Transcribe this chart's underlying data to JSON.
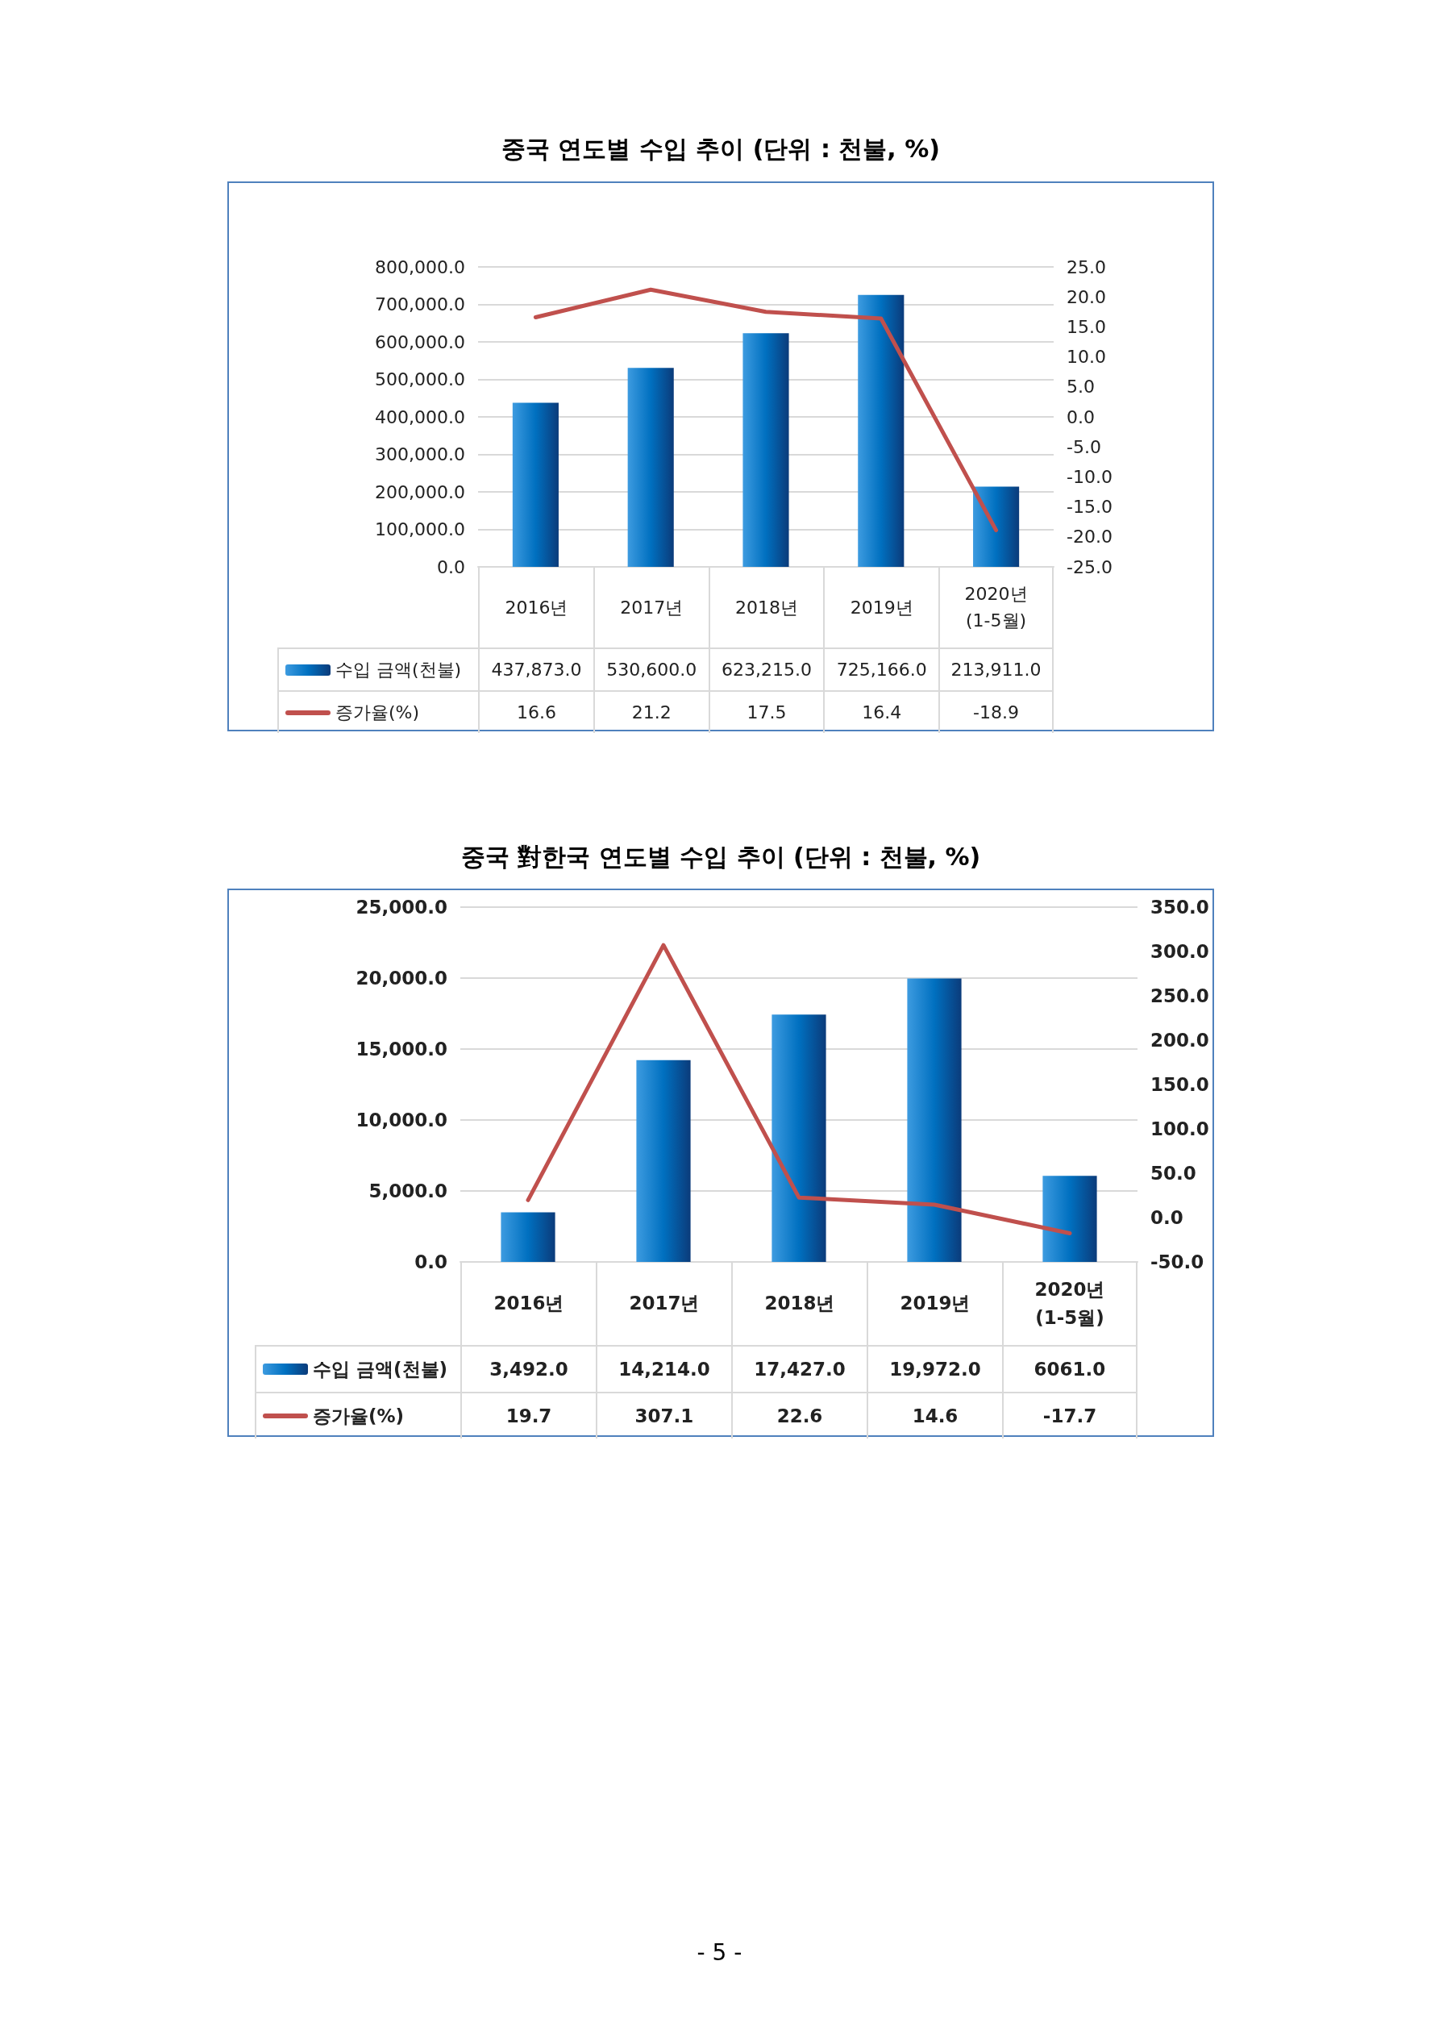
{
  "chart_data": [
    {
      "type": "bar",
      "title": "중국 연도별 수입 추이 (단위 : 천불, %)",
      "categories": [
        "2016년",
        "2017년",
        "2018년",
        "2019년",
        "2020년(1-5월)"
      ],
      "series": [
        {
          "name": "수입 금액(천불)",
          "color": "#0070c0",
          "values": [
            437873,
            530600,
            623215,
            725166,
            213911
          ],
          "value_labels": [
            "437,873.0",
            "530,600.0",
            "623,215.0",
            "725,166.0",
            "213,911.0"
          ]
        },
        {
          "name": "증가율(%)",
          "type": "line",
          "axis": "y2",
          "color": "#c0504d",
          "values": [
            16.6,
            21.2,
            17.5,
            16.4,
            -18.9
          ],
          "value_labels": [
            "16.6",
            "21.2",
            "17.5",
            "16.4",
            "-18.9"
          ]
        }
      ],
      "ylim": [
        0,
        800000
      ],
      "yticks": [
        {
          "value": 0,
          "label": "0.0"
        },
        {
          "value": 100000,
          "label": "100,000.0"
        },
        {
          "value": 200000,
          "label": "200,000.0"
        },
        {
          "value": 300000,
          "label": "300,000.0"
        },
        {
          "value": 400000,
          "label": "400,000.0"
        },
        {
          "value": 500000,
          "label": "500,000.0"
        },
        {
          "value": 600000,
          "label": "600,000.0"
        },
        {
          "value": 700000,
          "label": "700,000.0"
        },
        {
          "value": 800000,
          "label": "800,000.0"
        }
      ],
      "y2lim": [
        -25,
        25
      ],
      "y2ticks": [
        {
          "value": -25,
          "label": "-25.0"
        },
        {
          "value": -20,
          "label": "-20.0"
        },
        {
          "value": -15,
          "label": "-15.0"
        },
        {
          "value": -10,
          "label": "-10.0"
        },
        {
          "value": -5,
          "label": "-5.0"
        },
        {
          "value": 0,
          "label": "0.0"
        },
        {
          "value": 5,
          "label": "5.0"
        },
        {
          "value": 10,
          "label": "10.0"
        },
        {
          "value": 15,
          "label": "15.0"
        },
        {
          "value": 20,
          "label": "20.0"
        },
        {
          "value": 25,
          "label": "25.0"
        }
      ],
      "grid": "y",
      "legend": "bottom",
      "marker": "none",
      "line_style": "solid"
    },
    {
      "type": "bar",
      "title": "중국 對한국 연도별 수입 추이 (단위 : 천불, %)",
      "categories": [
        "2016년",
        "2017년",
        "2018년",
        "2019년",
        "2020년(1-5월)"
      ],
      "series": [
        {
          "name": "수입 금액(천불)",
          "color": "#0070c0",
          "values": [
            3492,
            14214,
            17427,
            19972,
            6061
          ],
          "value_labels": [
            "3,492.0",
            "14,214.0",
            "17,427.0",
            "19,972.0",
            "6061.0"
          ]
        },
        {
          "name": "증가율(%)",
          "type": "line",
          "axis": "y2",
          "color": "#c0504d",
          "values": [
            19.7,
            307.1,
            22.6,
            14.6,
            -17.7
          ],
          "value_labels": [
            "19.7",
            "307.1",
            "22.6",
            "14.6",
            "-17.7"
          ]
        }
      ],
      "ylim": [
        0,
        25000
      ],
      "yticks": [
        {
          "value": 0,
          "label": "0.0"
        },
        {
          "value": 5000,
          "label": "5,000.0"
        },
        {
          "value": 10000,
          "label": "10,000.0"
        },
        {
          "value": 15000,
          "label": "15,000.0"
        },
        {
          "value": 20000,
          "label": "20,000.0"
        },
        {
          "value": 25000,
          "label": "25,000.0"
        }
      ],
      "y2lim": [
        -50,
        350
      ],
      "y2ticks": [
        {
          "value": -50,
          "label": "-50.0"
        },
        {
          "value": 0,
          "label": "0.0"
        },
        {
          "value": 50,
          "label": "50.0"
        },
        {
          "value": 100,
          "label": "100.0"
        },
        {
          "value": 150,
          "label": "150.0"
        },
        {
          "value": 200,
          "label": "200.0"
        },
        {
          "value": 250,
          "label": "250.0"
        },
        {
          "value": 300,
          "label": "300.0"
        },
        {
          "value": 350,
          "label": "350.0"
        }
      ],
      "grid": "y",
      "legend": "bottom",
      "marker": "none",
      "line_style": "solid",
      "annotations": [
        "- 5 -"
      ]
    }
  ]
}
